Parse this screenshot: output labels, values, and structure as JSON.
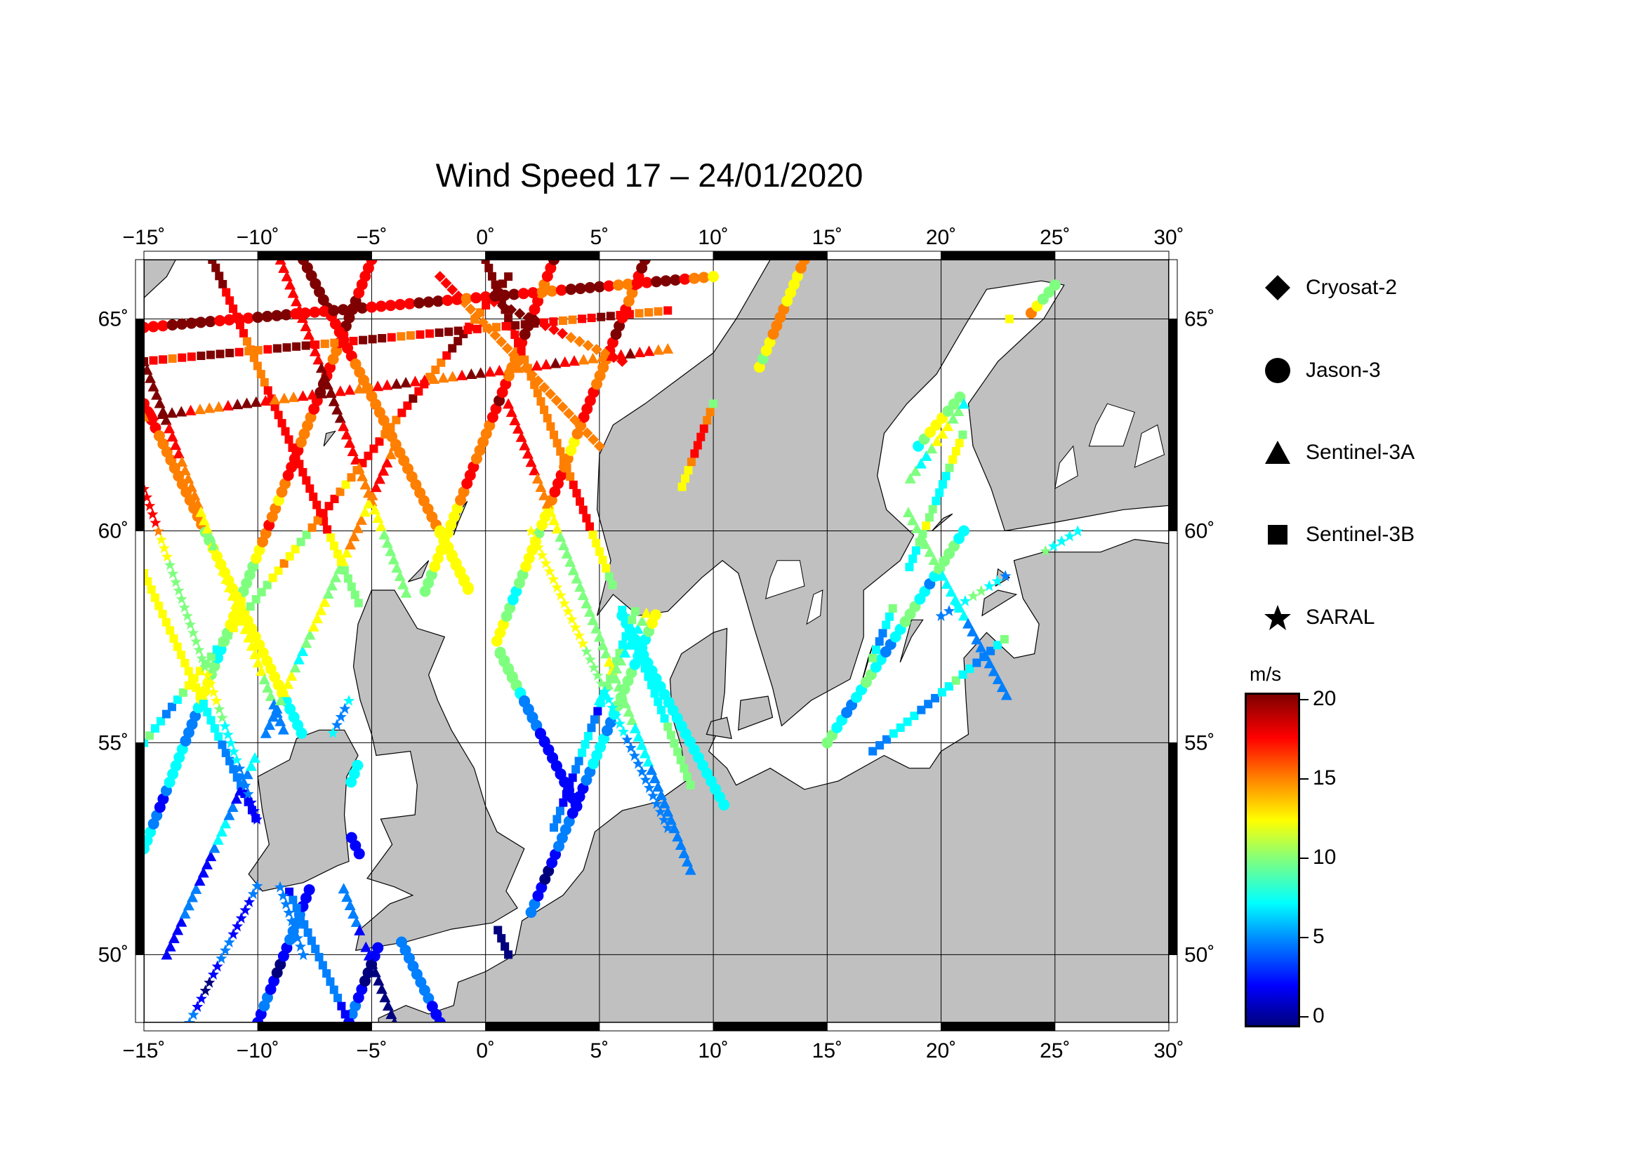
{
  "title": "Wind Speed 17 – 24/01/2020",
  "map": {
    "lon_ticks": [
      "−15˚",
      "−10˚",
      "−5˚",
      "0˚",
      "5˚",
      "10˚",
      "15˚",
      "20˚",
      "25˚",
      "30˚"
    ],
    "lat_ticks": [
      "65˚",
      "60˚",
      "55˚",
      "50˚"
    ],
    "lon_range": [
      -15,
      30
    ],
    "lat_range": [
      48.4,
      66.4
    ],
    "land_color": "#c0c0c0",
    "sea_color": "#ffffff",
    "grid": true
  },
  "legend": {
    "items": [
      {
        "label": "Cryosat-2",
        "symbol": "diamond-icon"
      },
      {
        "label": "Jason-3",
        "symbol": "circle-icon"
      },
      {
        "label": "Sentinel-3A",
        "symbol": "triangle-icon"
      },
      {
        "label": "Sentinel-3B",
        "symbol": "square-icon"
      },
      {
        "label": "SARAL",
        "symbol": "star-icon"
      }
    ]
  },
  "colorbar": {
    "unit": "m/s",
    "ticks": [
      "20",
      "15",
      "10",
      "5",
      "0"
    ],
    "range": [
      0,
      20
    ],
    "colormap": [
      "#00007f",
      "#0000ff",
      "#007fff",
      "#00ffff",
      "#7fff7f",
      "#ffff00",
      "#ff7f00",
      "#ff0000",
      "#7f0000"
    ]
  }
}
